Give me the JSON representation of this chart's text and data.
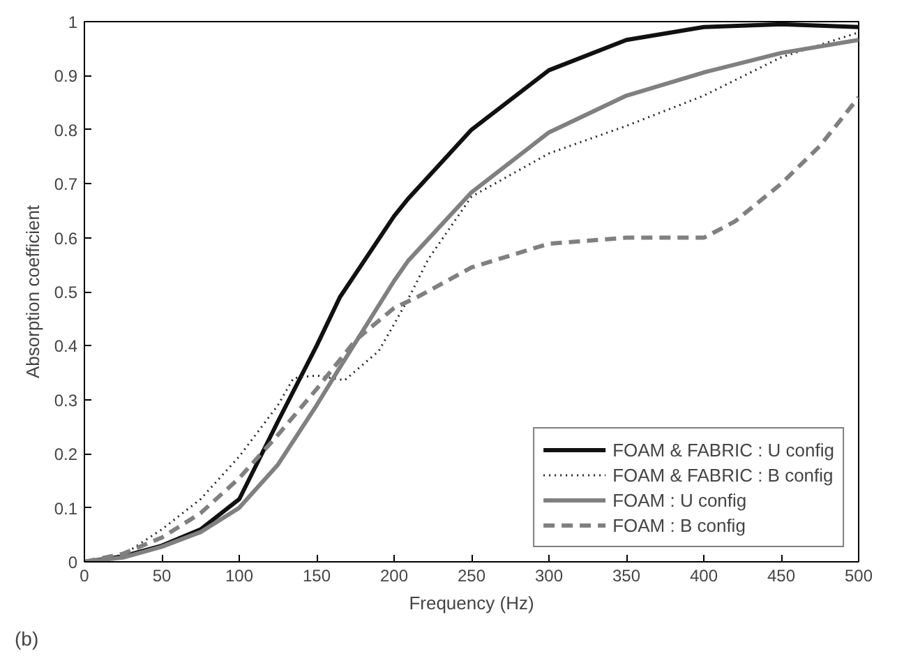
{
  "chart_data": {
    "type": "line",
    "xlabel": "Frequency (Hz)",
    "ylabel": "Absorption coefficient",
    "annotations": [
      "(b)"
    ],
    "xlim": [
      0,
      500
    ],
    "ylim": [
      0,
      1
    ],
    "xticks": [
      0,
      50,
      100,
      150,
      200,
      250,
      300,
      350,
      400,
      450,
      500
    ],
    "yticks": [
      0,
      0.1,
      0.2,
      0.3,
      0.4,
      0.5,
      0.6,
      0.7,
      0.8,
      0.9,
      1
    ],
    "grid": false,
    "legend": "bottom right",
    "series": [
      {
        "name": "FOAM & FABRIC : U config",
        "color": "#111111",
        "line_style": "solid",
        "x": [
          0,
          25,
          50,
          75,
          100,
          125,
          150,
          165,
          200,
          209,
          250,
          300,
          350,
          400,
          450,
          500
        ],
        "values": [
          0,
          0.01,
          0.03,
          0.06,
          0.116,
          0.26,
          0.4,
          0.49,
          0.64,
          0.672,
          0.8,
          0.91,
          0.966,
          0.99,
          0.995,
          0.99
        ]
      },
      {
        "name": "FOAM & FABRIC : B config",
        "color": "#222222",
        "line_style": "dotted",
        "x": [
          0,
          25,
          50,
          75,
          100,
          125,
          135,
          150,
          168,
          190,
          200,
          209,
          222,
          250,
          300,
          350,
          400,
          450,
          500
        ],
        "values": [
          0,
          0.013,
          0.06,
          0.116,
          0.195,
          0.29,
          0.34,
          0.345,
          0.336,
          0.39,
          0.44,
          0.486,
          0.56,
          0.676,
          0.756,
          0.807,
          0.863,
          0.934,
          0.98
        ]
      },
      {
        "name": "FOAM : U config",
        "color": "#808080",
        "line_style": "solid",
        "x": [
          0,
          25,
          50,
          75,
          100,
          125,
          150,
          165,
          200,
          209,
          250,
          300,
          350,
          400,
          450,
          500
        ],
        "values": [
          0,
          0.008,
          0.028,
          0.055,
          0.1,
          0.18,
          0.29,
          0.36,
          0.52,
          0.557,
          0.684,
          0.795,
          0.863,
          0.906,
          0.942,
          0.966
        ]
      },
      {
        "name": "FOAM : B config",
        "color": "#808080",
        "line_style": "dashed",
        "x": [
          0,
          25,
          50,
          75,
          100,
          125,
          150,
          175,
          200,
          215,
          250,
          300,
          350,
          400,
          420,
          450,
          475,
          500
        ],
        "values": [
          0,
          0.015,
          0.045,
          0.09,
          0.155,
          0.235,
          0.32,
          0.41,
          0.47,
          0.49,
          0.545,
          0.589,
          0.6,
          0.6,
          0.63,
          0.7,
          0.77,
          0.86
        ]
      }
    ]
  }
}
